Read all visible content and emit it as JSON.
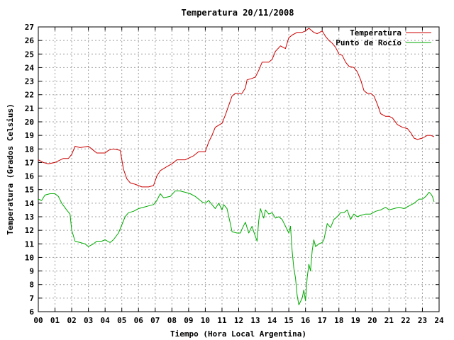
{
  "chart_data": {
    "type": "line",
    "title": "Temperatura 20/11/2008",
    "xlabel": "Tiempo (Hora Local Argentina)",
    "ylabel": "Temperatura (Grados Celsius)",
    "xlim": [
      0,
      24
    ],
    "ylim": [
      6,
      27
    ],
    "x_ticks": [
      "00",
      "01",
      "02",
      "03",
      "04",
      "05",
      "06",
      "07",
      "08",
      "09",
      "10",
      "11",
      "12",
      "13",
      "14",
      "15",
      "16",
      "17",
      "18",
      "19",
      "20",
      "21",
      "22",
      "23",
      "24"
    ],
    "y_ticks": [
      "6",
      "7",
      "8",
      "9",
      "10",
      "11",
      "12",
      "13",
      "14",
      "15",
      "16",
      "17",
      "18",
      "19",
      "20",
      "21",
      "22",
      "23",
      "24",
      "25",
      "26",
      "27"
    ],
    "grid": true,
    "legend_position": "top-right",
    "series": [
      {
        "name": "Temperatura",
        "color": "#cc0000",
        "points": [
          [
            0,
            17.2
          ],
          [
            0.3,
            17.0
          ],
          [
            0.6,
            16.9
          ],
          [
            1.0,
            17.0
          ],
          [
            1.5,
            17.3
          ],
          [
            1.8,
            17.3
          ],
          [
            2.0,
            17.6
          ],
          [
            2.2,
            18.2
          ],
          [
            2.5,
            18.1
          ],
          [
            3.0,
            18.2
          ],
          [
            3.3,
            17.9
          ],
          [
            3.5,
            17.7
          ],
          [
            4.0,
            17.7
          ],
          [
            4.2,
            17.9
          ],
          [
            4.5,
            18.0
          ],
          [
            4.9,
            17.9
          ],
          [
            5.1,
            16.5
          ],
          [
            5.3,
            15.8
          ],
          [
            5.5,
            15.5
          ],
          [
            5.8,
            15.4
          ],
          [
            6.2,
            15.2
          ],
          [
            6.6,
            15.2
          ],
          [
            6.9,
            15.3
          ],
          [
            7.1,
            16.0
          ],
          [
            7.3,
            16.4
          ],
          [
            7.7,
            16.7
          ],
          [
            8.0,
            16.9
          ],
          [
            8.3,
            17.2
          ],
          [
            8.8,
            17.2
          ],
          [
            9.3,
            17.5
          ],
          [
            9.6,
            17.8
          ],
          [
            10.0,
            17.8
          ],
          [
            10.2,
            18.5
          ],
          [
            10.4,
            19.0
          ],
          [
            10.6,
            19.6
          ],
          [
            11.0,
            19.9
          ],
          [
            11.2,
            20.5
          ],
          [
            11.4,
            21.2
          ],
          [
            11.6,
            21.9
          ],
          [
            11.8,
            22.1
          ],
          [
            12.2,
            22.1
          ],
          [
            12.4,
            22.5
          ],
          [
            12.5,
            23.1
          ],
          [
            12.8,
            23.2
          ],
          [
            13.0,
            23.3
          ],
          [
            13.2,
            23.8
          ],
          [
            13.4,
            24.4
          ],
          [
            13.8,
            24.4
          ],
          [
            14.0,
            24.6
          ],
          [
            14.2,
            25.2
          ],
          [
            14.5,
            25.6
          ],
          [
            14.8,
            25.4
          ],
          [
            15.0,
            26.2
          ],
          [
            15.2,
            26.4
          ],
          [
            15.5,
            26.6
          ],
          [
            15.8,
            26.6
          ],
          [
            16.0,
            26.7
          ],
          [
            16.2,
            26.9
          ],
          [
            16.5,
            26.6
          ],
          [
            16.7,
            26.5
          ],
          [
            17.0,
            26.7
          ],
          [
            17.2,
            26.3
          ],
          [
            17.4,
            26.0
          ],
          [
            17.6,
            25.8
          ],
          [
            17.8,
            25.5
          ],
          [
            18.0,
            25.0
          ],
          [
            18.2,
            24.9
          ],
          [
            18.4,
            24.4
          ],
          [
            18.6,
            24.1
          ],
          [
            18.9,
            24.0
          ],
          [
            19.1,
            23.7
          ],
          [
            19.3,
            23.1
          ],
          [
            19.5,
            22.3
          ],
          [
            19.7,
            22.1
          ],
          [
            19.9,
            22.1
          ],
          [
            20.1,
            21.9
          ],
          [
            20.3,
            21.3
          ],
          [
            20.5,
            20.6
          ],
          [
            20.8,
            20.4
          ],
          [
            21.0,
            20.4
          ],
          [
            21.2,
            20.3
          ],
          [
            21.5,
            19.8
          ],
          [
            21.8,
            19.6
          ],
          [
            22.1,
            19.5
          ],
          [
            22.3,
            19.2
          ],
          [
            22.5,
            18.8
          ],
          [
            22.7,
            18.7
          ],
          [
            23.0,
            18.8
          ],
          [
            23.3,
            19.0
          ],
          [
            23.5,
            19.0
          ],
          [
            23.7,
            18.9
          ]
        ]
      },
      {
        "name": "Punto de Rocío",
        "color": "#00aa00",
        "points": [
          [
            0,
            14.3
          ],
          [
            0.2,
            14.2
          ],
          [
            0.4,
            14.6
          ],
          [
            0.7,
            14.7
          ],
          [
            1.0,
            14.7
          ],
          [
            1.2,
            14.5
          ],
          [
            1.4,
            14.0
          ],
          [
            1.7,
            13.5
          ],
          [
            1.9,
            13.2
          ],
          [
            2.0,
            12.0
          ],
          [
            2.2,
            11.2
          ],
          [
            2.5,
            11.1
          ],
          [
            2.8,
            11.0
          ],
          [
            3.0,
            10.8
          ],
          [
            3.3,
            11.0
          ],
          [
            3.5,
            11.2
          ],
          [
            3.8,
            11.2
          ],
          [
            4.0,
            11.3
          ],
          [
            4.3,
            11.1
          ],
          [
            4.5,
            11.3
          ],
          [
            4.8,
            11.8
          ],
          [
            5.0,
            12.4
          ],
          [
            5.2,
            13.0
          ],
          [
            5.4,
            13.3
          ],
          [
            5.7,
            13.4
          ],
          [
            6.0,
            13.6
          ],
          [
            6.3,
            13.7
          ],
          [
            6.6,
            13.8
          ],
          [
            6.9,
            13.9
          ],
          [
            7.1,
            14.2
          ],
          [
            7.3,
            14.7
          ],
          [
            7.5,
            14.4
          ],
          [
            7.9,
            14.5
          ],
          [
            8.2,
            14.9
          ],
          [
            8.5,
            14.9
          ],
          [
            8.8,
            14.8
          ],
          [
            9.1,
            14.7
          ],
          [
            9.4,
            14.5
          ],
          [
            9.6,
            14.3
          ],
          [
            9.8,
            14.1
          ],
          [
            10.0,
            14.0
          ],
          [
            10.2,
            14.2
          ],
          [
            10.4,
            13.9
          ],
          [
            10.6,
            13.6
          ],
          [
            10.8,
            14.0
          ],
          [
            11.0,
            13.5
          ],
          [
            11.1,
            13.9
          ],
          [
            11.3,
            13.6
          ],
          [
            11.5,
            12.5
          ],
          [
            11.6,
            11.9
          ],
          [
            11.9,
            11.8
          ],
          [
            12.1,
            11.8
          ],
          [
            12.2,
            12.1
          ],
          [
            12.4,
            12.6
          ],
          [
            12.6,
            11.8
          ],
          [
            12.8,
            12.3
          ],
          [
            12.9,
            11.9
          ],
          [
            13.1,
            11.2
          ],
          [
            13.2,
            12.7
          ],
          [
            13.3,
            13.6
          ],
          [
            13.5,
            12.9
          ],
          [
            13.6,
            13.5
          ],
          [
            13.8,
            13.2
          ],
          [
            14.0,
            13.3
          ],
          [
            14.2,
            12.9
          ],
          [
            14.4,
            13.0
          ],
          [
            14.6,
            12.8
          ],
          [
            14.8,
            12.3
          ],
          [
            15.0,
            11.8
          ],
          [
            15.1,
            12.3
          ],
          [
            15.2,
            10.5
          ],
          [
            15.3,
            9.2
          ],
          [
            15.4,
            8.5
          ],
          [
            15.5,
            7.2
          ],
          [
            15.6,
            6.5
          ],
          [
            15.8,
            7.0
          ],
          [
            15.9,
            7.6
          ],
          [
            16.0,
            6.8
          ],
          [
            16.1,
            8.5
          ],
          [
            16.2,
            9.5
          ],
          [
            16.3,
            9.0
          ],
          [
            16.4,
            10.5
          ],
          [
            16.5,
            11.3
          ],
          [
            16.6,
            10.8
          ],
          [
            16.8,
            11.0
          ],
          [
            17.0,
            11.1
          ],
          [
            17.1,
            11.3
          ],
          [
            17.3,
            12.5
          ],
          [
            17.5,
            12.2
          ],
          [
            17.7,
            12.8
          ],
          [
            17.9,
            13.0
          ],
          [
            18.1,
            13.3
          ],
          [
            18.3,
            13.3
          ],
          [
            18.5,
            13.5
          ],
          [
            18.7,
            12.8
          ],
          [
            18.9,
            13.2
          ],
          [
            19.1,
            13.0
          ],
          [
            19.3,
            13.1
          ],
          [
            19.6,
            13.2
          ],
          [
            19.9,
            13.2
          ],
          [
            20.2,
            13.4
          ],
          [
            20.5,
            13.5
          ],
          [
            20.8,
            13.7
          ],
          [
            21.0,
            13.5
          ],
          [
            21.3,
            13.6
          ],
          [
            21.6,
            13.7
          ],
          [
            21.9,
            13.6
          ],
          [
            22.2,
            13.8
          ],
          [
            22.5,
            14.0
          ],
          [
            22.8,
            14.3
          ],
          [
            23.0,
            14.3
          ],
          [
            23.2,
            14.5
          ],
          [
            23.4,
            14.8
          ],
          [
            23.5,
            14.7
          ],
          [
            23.6,
            14.5
          ],
          [
            23.7,
            14.1
          ]
        ]
      }
    ]
  }
}
